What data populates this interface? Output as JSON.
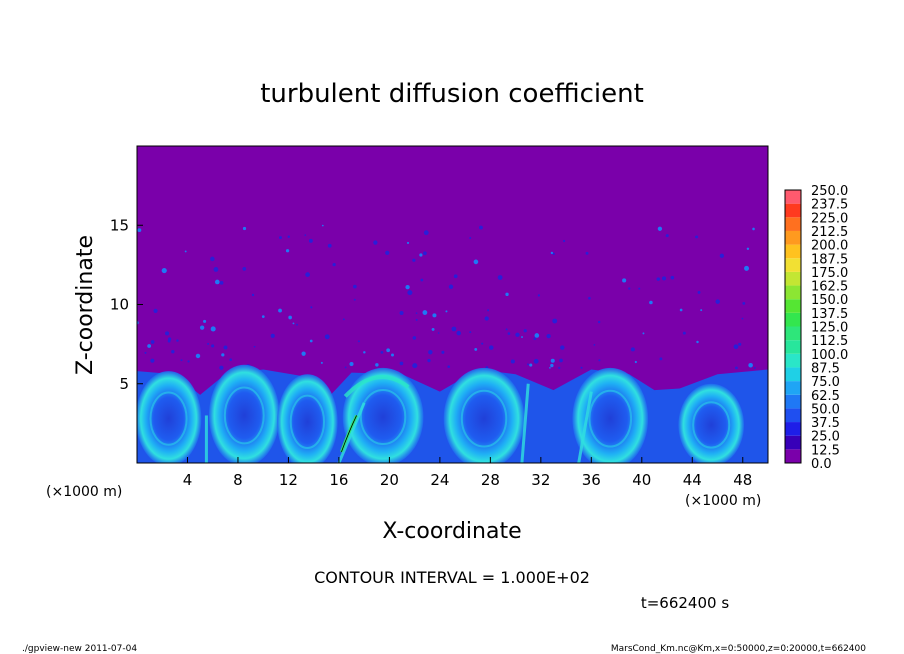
{
  "chart_data": {
    "type": "heatmap",
    "title": "turbulent diffusion coefficient",
    "xlabel": "X-coordinate",
    "ylabel": "Z-coordinate",
    "x_unit_left": "(×1000 m)",
    "x_unit_right": "(×1000 m)",
    "xlim": [
      0,
      50
    ],
    "ylim": [
      0,
      20
    ],
    "x_ticks": [
      "4",
      "8",
      "12",
      "16",
      "20",
      "24",
      "28",
      "32",
      "36",
      "40",
      "44",
      "48"
    ],
    "y_ticks": [
      "5",
      "10",
      "15"
    ],
    "colorbar": {
      "levels": [
        "0.0",
        "12.5",
        "25.0",
        "37.5",
        "50.0",
        "62.5",
        "75.0",
        "87.5",
        "100.0",
        "112.5",
        "125.0",
        "137.5",
        "150.0",
        "162.5",
        "175.0",
        "187.5",
        "200.0",
        "212.5",
        "225.0",
        "237.5",
        "250.0"
      ],
      "colors": [
        "#7a00aa",
        "#3800b8",
        "#1e1ee8",
        "#1f4ff0",
        "#1f78f5",
        "#1fa5f5",
        "#1fd0e6",
        "#2ae6c8",
        "#28e69c",
        "#2ee67a",
        "#33e64e",
        "#55e633",
        "#8ce633",
        "#c3e633",
        "#f2e033",
        "#ffc21f",
        "#ff9a1f",
        "#ff701f",
        "#ff3a1f",
        "#ff5a6e"
      ]
    },
    "background_value": 0.0,
    "plume_depth_km": 5.8,
    "contour_note": "CONTOUR INTERVAL = 1.000E+02",
    "time_label": "t=662400 s",
    "footer_left": "./gpview-new  2011-07-04",
    "footer_right": "MarsCond_Km.nc@Km,x=0:50000,z=0:20000,t=662400",
    "grid": false
  }
}
